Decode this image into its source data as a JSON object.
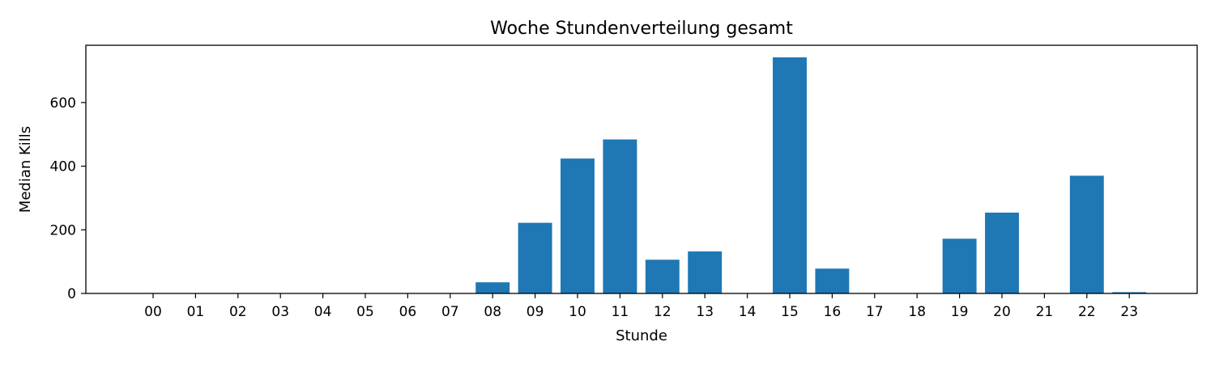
{
  "chart_data": {
    "type": "bar",
    "title": "Woche Stundenverteilung gesamt",
    "xlabel": "Stunde",
    "ylabel": "Median Kills",
    "categories": [
      "00",
      "01",
      "02",
      "03",
      "04",
      "05",
      "06",
      "07",
      "08",
      "09",
      "10",
      "11",
      "12",
      "13",
      "14",
      "15",
      "16",
      "17",
      "18",
      "19",
      "20",
      "21",
      "22",
      "23"
    ],
    "values": [
      0,
      0,
      0,
      0,
      0,
      0,
      0,
      0,
      35,
      222,
      424,
      484,
      106,
      132,
      0,
      742,
      78,
      0,
      0,
      172,
      254,
      0,
      370,
      4
    ],
    "ylim": [
      0,
      780
    ],
    "yticks": [
      0,
      200,
      400,
      600
    ],
    "grid": false,
    "bar_color": "#1f77b4"
  }
}
